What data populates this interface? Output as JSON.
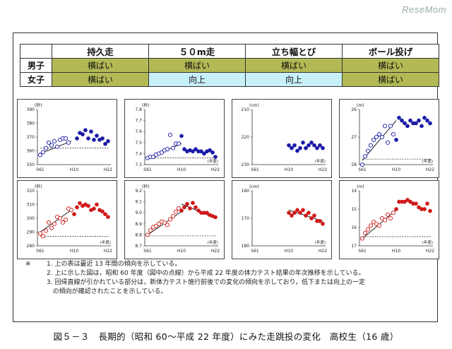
{
  "logo": "ReseMom",
  "summary_table": {
    "headers": [
      "持久走",
      "５０m走",
      "立ち幅とび",
      "ボール投げ"
    ],
    "rows": [
      {
        "label": "男子",
        "cells": [
          {
            "text": "横ばい",
            "status": "flat"
          },
          {
            "text": "横ばい",
            "status": "flat"
          },
          {
            "text": "横ばい",
            "status": "flat"
          },
          {
            "text": "横ばい",
            "status": "flat"
          }
        ]
      },
      {
        "label": "女子",
        "cells": [
          {
            "text": "横ばい",
            "status": "flat"
          },
          {
            "text": "向上",
            "status": "up"
          },
          {
            "text": "向上",
            "status": "up"
          },
          {
            "text": "横ばい",
            "status": "flat"
          }
        ]
      }
    ]
  },
  "colors": {
    "male": "#1a1aa8",
    "female": "#d01818",
    "flat": "#b3ba55",
    "up": "#c8f0f8"
  },
  "chart_data": [
    {
      "type": "scatter",
      "row": "male",
      "event": "持久走",
      "unit": "(秒)",
      "y_inverted": true,
      "ylim": [
        390,
        350
      ],
      "yticks": [
        "350",
        "360",
        "370",
        "380",
        "390"
      ],
      "xticks": [
        "S61",
        "H10",
        "H22"
      ],
      "x_unit": "",
      "ref_value": 362,
      "series": [
        {
          "style": "open",
          "x": [
            1986,
            1987,
            1988,
            1989,
            1990,
            1991,
            1992,
            1993,
            1994,
            1995,
            1996
          ],
          "y": [
            357,
            359,
            362,
            366,
            364,
            367,
            363,
            368,
            369,
            369,
            366
          ],
          "fit": [
            [
              1986,
              358
            ],
            [
              1997,
              367
            ]
          ]
        },
        {
          "style": "filled",
          "x": [
            1999,
            2000,
            2001,
            2002,
            2003,
            2004,
            2005,
            2006,
            2007,
            2008,
            2009,
            2010
          ],
          "y": [
            369,
            373,
            372,
            375,
            369,
            374,
            368,
            371,
            368,
            369,
            365,
            367
          ]
        }
      ]
    },
    {
      "type": "scatter",
      "row": "male",
      "event": "５０m走",
      "unit": "(秒)",
      "y_inverted": true,
      "ylim": [
        7.8,
        7.3
      ],
      "yticks": [
        "7.3",
        "7.4",
        "7.5",
        "7.6",
        "7.7",
        "7.8"
      ],
      "xticks": [
        "S61",
        "H10",
        "H22"
      ],
      "x_unit": "(年度)",
      "ref_value": 7.36,
      "series": [
        {
          "style": "open",
          "x": [
            1986,
            1987,
            1988,
            1989,
            1990,
            1991,
            1992,
            1993,
            1994,
            1995,
            1996,
            1997
          ],
          "y": [
            7.36,
            7.37,
            7.37,
            7.39,
            7.4,
            7.41,
            7.43,
            7.44,
            7.57,
            7.45,
            7.49,
            7.49
          ],
          "fit": [
            [
              1986,
              7.36
            ],
            [
              1998,
              7.49
            ]
          ]
        },
        {
          "style": "filled",
          "x": [
            1998,
            1999,
            2000,
            2001,
            2002,
            2003,
            2004,
            2005,
            2006,
            2007,
            2008,
            2009,
            2010
          ],
          "y": [
            7.56,
            7.44,
            7.42,
            7.43,
            7.42,
            7.44,
            7.42,
            7.42,
            7.4,
            7.42,
            7.43,
            7.41,
            7.37
          ]
        }
      ]
    },
    {
      "type": "scatter",
      "row": "male",
      "event": "立ち幅とび",
      "unit": "(cm)",
      "ylim": [
        210,
        230
      ],
      "yticks": [
        "210",
        "220",
        "230"
      ],
      "xticks": [
        "S61",
        "H10",
        "H22"
      ],
      "x_unit": "(年度)",
      "ref_value": null,
      "series": [
        {
          "style": "filled",
          "x": [
            1998,
            1999,
            2000,
            2001,
            2002,
            2003,
            2004,
            2005,
            2006,
            2007,
            2008,
            2009,
            2010
          ],
          "y": [
            223,
            224,
            223,
            225,
            224,
            222,
            224,
            223,
            222,
            223,
            224,
            223,
            224
          ]
        }
      ]
    },
    {
      "type": "scatter",
      "row": "male",
      "event": "ボール投げ",
      "unit": "(m)",
      "ylim": [
        26,
        28
      ],
      "yticks": [
        "26",
        "27",
        "28"
      ],
      "xticks": [
        "S61",
        "H10",
        "H22"
      ],
      "x_unit": "(年度)",
      "ref_value": 27.8,
      "series": [
        {
          "style": "open",
          "x": [
            1986,
            1987,
            1988,
            1989,
            1990,
            1991,
            1992,
            1993,
            1994,
            1995,
            1996,
            1997
          ],
          "y": [
            28.0,
            27.7,
            27.5,
            27.3,
            27.1,
            27.0,
            26.9,
            27.0,
            26.6,
            27.2,
            26.6,
            26.9
          ],
          "fit": [
            [
              1986,
              27.85
            ],
            [
              1998,
              26.4
            ]
          ]
        },
        {
          "style": "filled",
          "x": [
            1998,
            1999,
            2000,
            2001,
            2002,
            2003,
            2004,
            2005,
            2006,
            2007,
            2008,
            2009,
            2010
          ],
          "y": [
            27.1,
            26.3,
            26.4,
            26.5,
            26.6,
            26.4,
            26.5,
            26.5,
            26.4,
            26.6,
            26.3,
            26.4,
            26.5
          ]
        }
      ]
    },
    {
      "type": "scatter",
      "row": "female",
      "event": "持久走",
      "unit": "(秒)",
      "y_inverted": true,
      "ylim": [
        320,
        280
      ],
      "yticks": [
        "280",
        "290",
        "300",
        "310",
        "320"
      ],
      "xticks": [
        "S61",
        "H10",
        "H22"
      ],
      "x_unit": "(年度)",
      "ref_value": 287,
      "series": [
        {
          "style": "open",
          "x": [
            1986,
            1987,
            1988,
            1989,
            1990,
            1991,
            1992,
            1993,
            1994,
            1995,
            1996,
            1997
          ],
          "y": [
            289,
            287,
            291,
            297,
            293,
            296,
            301,
            300,
            297,
            299,
            307,
            306
          ],
          "fit": [
            [
              1986,
              290
            ],
            [
              1997,
              306
            ]
          ]
        },
        {
          "style": "filled",
          "x": [
            1998,
            1999,
            2000,
            2001,
            2002,
            2003,
            2004,
            2005,
            2006,
            2007,
            2008,
            2009,
            2010
          ],
          "y": [
            303,
            308,
            311,
            309,
            310,
            309,
            306,
            307,
            310,
            306,
            305,
            303,
            301
          ]
        }
      ]
    },
    {
      "type": "scatter",
      "row": "female",
      "event": "５０m走",
      "unit": "(秒)",
      "y_inverted": true,
      "ylim": [
        9.2,
        8.7
      ],
      "yticks": [
        "8.7",
        "8.8",
        "8.9",
        "9.0",
        "9.1",
        "9.2"
      ],
      "xticks": [
        "S61",
        "H10",
        "H22"
      ],
      "x_unit": "(年度)",
      "ref_value": 8.79,
      "series": [
        {
          "style": "open",
          "x": [
            1986,
            1987,
            1988,
            1989,
            1990,
            1991,
            1992,
            1993,
            1994,
            1995,
            1996,
            1997
          ],
          "y": [
            8.8,
            8.84,
            8.87,
            8.88,
            8.9,
            8.92,
            8.91,
            8.89,
            8.94,
            8.97,
            9.01,
            9.04
          ],
          "fit": [
            [
              1986,
              8.8
            ],
            [
              1998,
              9.01
            ]
          ]
        },
        {
          "style": "filled",
          "x": [
            1998,
            1999,
            2000,
            2001,
            2002,
            2003,
            2004,
            2005,
            2006,
            2007,
            2008,
            2009,
            2010
          ],
          "y": [
            9.02,
            9.05,
            9.08,
            9.04,
            9.09,
            9.05,
            9.02,
            9.0,
            9.0,
            9.0,
            8.98,
            8.97,
            8.96
          ],
          "fit": [
            [
              1998,
              9.08
            ],
            [
              2010,
              8.95
            ]
          ]
        }
      ]
    },
    {
      "type": "scatter",
      "row": "female",
      "event": "立ち幅とび",
      "unit": "(cm)",
      "ylim": [
        160,
        180
      ],
      "yticks": [
        "160",
        "170",
        "180"
      ],
      "xticks": [
        "S61",
        "H10",
        "H22"
      ],
      "x_unit": "(年度)",
      "ref_value": null,
      "series": [
        {
          "style": "filled",
          "x": [
            1998,
            1999,
            2000,
            2001,
            2002,
            2003,
            2004,
            2005,
            2006,
            2007,
            2008,
            2009,
            2010
          ],
          "y": [
            168,
            169,
            168,
            167,
            168,
            167,
            169,
            168,
            170,
            169,
            171,
            171,
            172
          ],
          "fit": [
            [
              1998,
              167
            ],
            [
              2010,
              171
            ]
          ]
        }
      ]
    },
    {
      "type": "scatter",
      "row": "female",
      "event": "ボール投げ",
      "unit": "(m)",
      "ylim": [
        14,
        17
      ],
      "yticks": [
        "14",
        "15",
        "16",
        "17"
      ],
      "xticks": [
        "S61",
        "H10",
        "H22"
      ],
      "x_unit": "(年度)",
      "ref_value": 16.5,
      "series": [
        {
          "style": "open",
          "x": [
            1986,
            1987,
            1988,
            1989,
            1990,
            1991,
            1992,
            1993,
            1994,
            1995,
            1996,
            1997
          ],
          "y": [
            16.6,
            16.3,
            16.1,
            15.9,
            15.7,
            15.8,
            15.9,
            15.5,
            15.6,
            15.3,
            15.5,
            15.2
          ],
          "fit": [
            [
              1986,
              16.6
            ],
            [
              1998,
              15.05
            ]
          ]
        },
        {
          "style": "filled",
          "x": [
            1998,
            1999,
            2000,
            2001,
            2002,
            2003,
            2004,
            2005,
            2006,
            2007,
            2008,
            2009,
            2010
          ],
          "y": [
            15.0,
            14.6,
            14.6,
            14.6,
            14.5,
            14.6,
            14.7,
            14.7,
            14.9,
            15.0,
            15.0,
            14.7,
            15.1
          ]
        }
      ]
    }
  ],
  "notes": {
    "mark": "※",
    "lines": [
      "1. 上の表は最近 13 年間の傾向を示している。",
      "2. 上に示した図は，昭和 60 年度（図中の点線）から平成 22 年度の体力テスト結果の年次推移を示している。",
      "3. 回帰直線が引かれている部分は，新体力テスト施行前後での変化の傾向を示しており，低下または向上の一定",
      "   の傾向が確認されたことを示している。"
    ]
  },
  "caption": "図５－３　長期的（昭和 60～平成 22 年度）にみた走跳投の変化　高校生（16 歳）"
}
